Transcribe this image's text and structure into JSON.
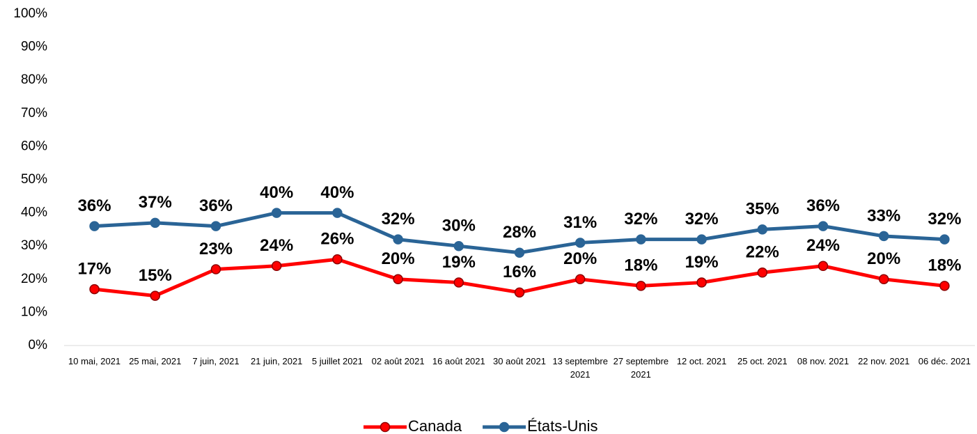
{
  "chart_data": {
    "type": "line",
    "categories": [
      "10 mai, 2021",
      "25 mai, 2021",
      "7 juin, 2021",
      "21 juin, 2021",
      "5 juillet 2021",
      "02 août 2021",
      "16 août 2021",
      "30 août 2021",
      "13 septembre 2021",
      "27 septembre 2021",
      "12 oct. 2021",
      "25 oct. 2021",
      "08 nov. 2021",
      "22 nov. 2021",
      "06 déc. 2021"
    ],
    "series": [
      {
        "name": "Canada",
        "color": "#ff0000",
        "values": [
          17,
          15,
          23,
          24,
          26,
          20,
          19,
          16,
          20,
          18,
          19,
          22,
          24,
          20,
          18
        ],
        "value_labels": [
          "17%",
          "15%",
          "23%",
          "24%",
          "26%",
          "20%",
          "19%",
          "16%",
          "20%",
          "18%",
          "19%",
          "22%",
          "24%",
          "20%",
          "18%"
        ]
      },
      {
        "name": "États-Unis",
        "color": "#2a6496",
        "values": [
          36,
          37,
          36,
          40,
          40,
          32,
          30,
          28,
          31,
          32,
          32,
          35,
          36,
          33,
          32
        ],
        "value_labels": [
          "36%",
          "37%",
          "36%",
          "40%",
          "40%",
          "32%",
          "30%",
          "28%",
          "31%",
          "32%",
          "32%",
          "35%",
          "36%",
          "33%",
          "32%"
        ]
      }
    ],
    "ylim": [
      0,
      100
    ],
    "yticks": [
      {
        "value": 0,
        "label": "0%"
      },
      {
        "value": 10,
        "label": "10%"
      },
      {
        "value": 20,
        "label": "20%"
      },
      {
        "value": 30,
        "label": "30%"
      },
      {
        "value": 40,
        "label": "40%"
      },
      {
        "value": 50,
        "label": "50%"
      },
      {
        "value": 60,
        "label": "60%"
      },
      {
        "value": 70,
        "label": "70%"
      },
      {
        "value": 80,
        "label": "80%"
      },
      {
        "value": 90,
        "label": "90%"
      },
      {
        "value": 100,
        "label": "100%"
      }
    ],
    "legend": "bottom"
  }
}
